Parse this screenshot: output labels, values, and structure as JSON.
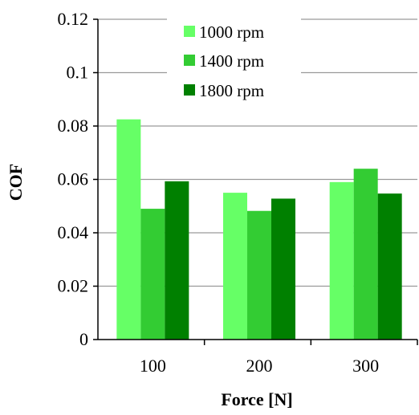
{
  "chart_data": {
    "type": "bar",
    "xlabel": "Force [N]",
    "ylabel": "COF",
    "ylim": [
      0,
      0.12
    ],
    "ytick_values": [
      0,
      0.02,
      0.04,
      0.06,
      0.08,
      0.1,
      0.12
    ],
    "ytick_labels": [
      "0",
      "0.02",
      "0.04",
      "0.06",
      "0.08",
      "0.1",
      "0.12"
    ],
    "categories": [
      "100",
      "200",
      "300"
    ],
    "series": [
      {
        "name": "1000 rpm",
        "color": "#66ff66",
        "values": [
          0.0825,
          0.055,
          0.059
        ]
      },
      {
        "name": "1400 rpm",
        "color": "#33cc33",
        "values": [
          0.049,
          0.0482,
          0.064
        ]
      },
      {
        "name": "1800 rpm",
        "color": "#008000",
        "values": [
          0.0593,
          0.0528,
          0.0547
        ]
      }
    ],
    "grid": true,
    "legend_position": "top-right"
  }
}
